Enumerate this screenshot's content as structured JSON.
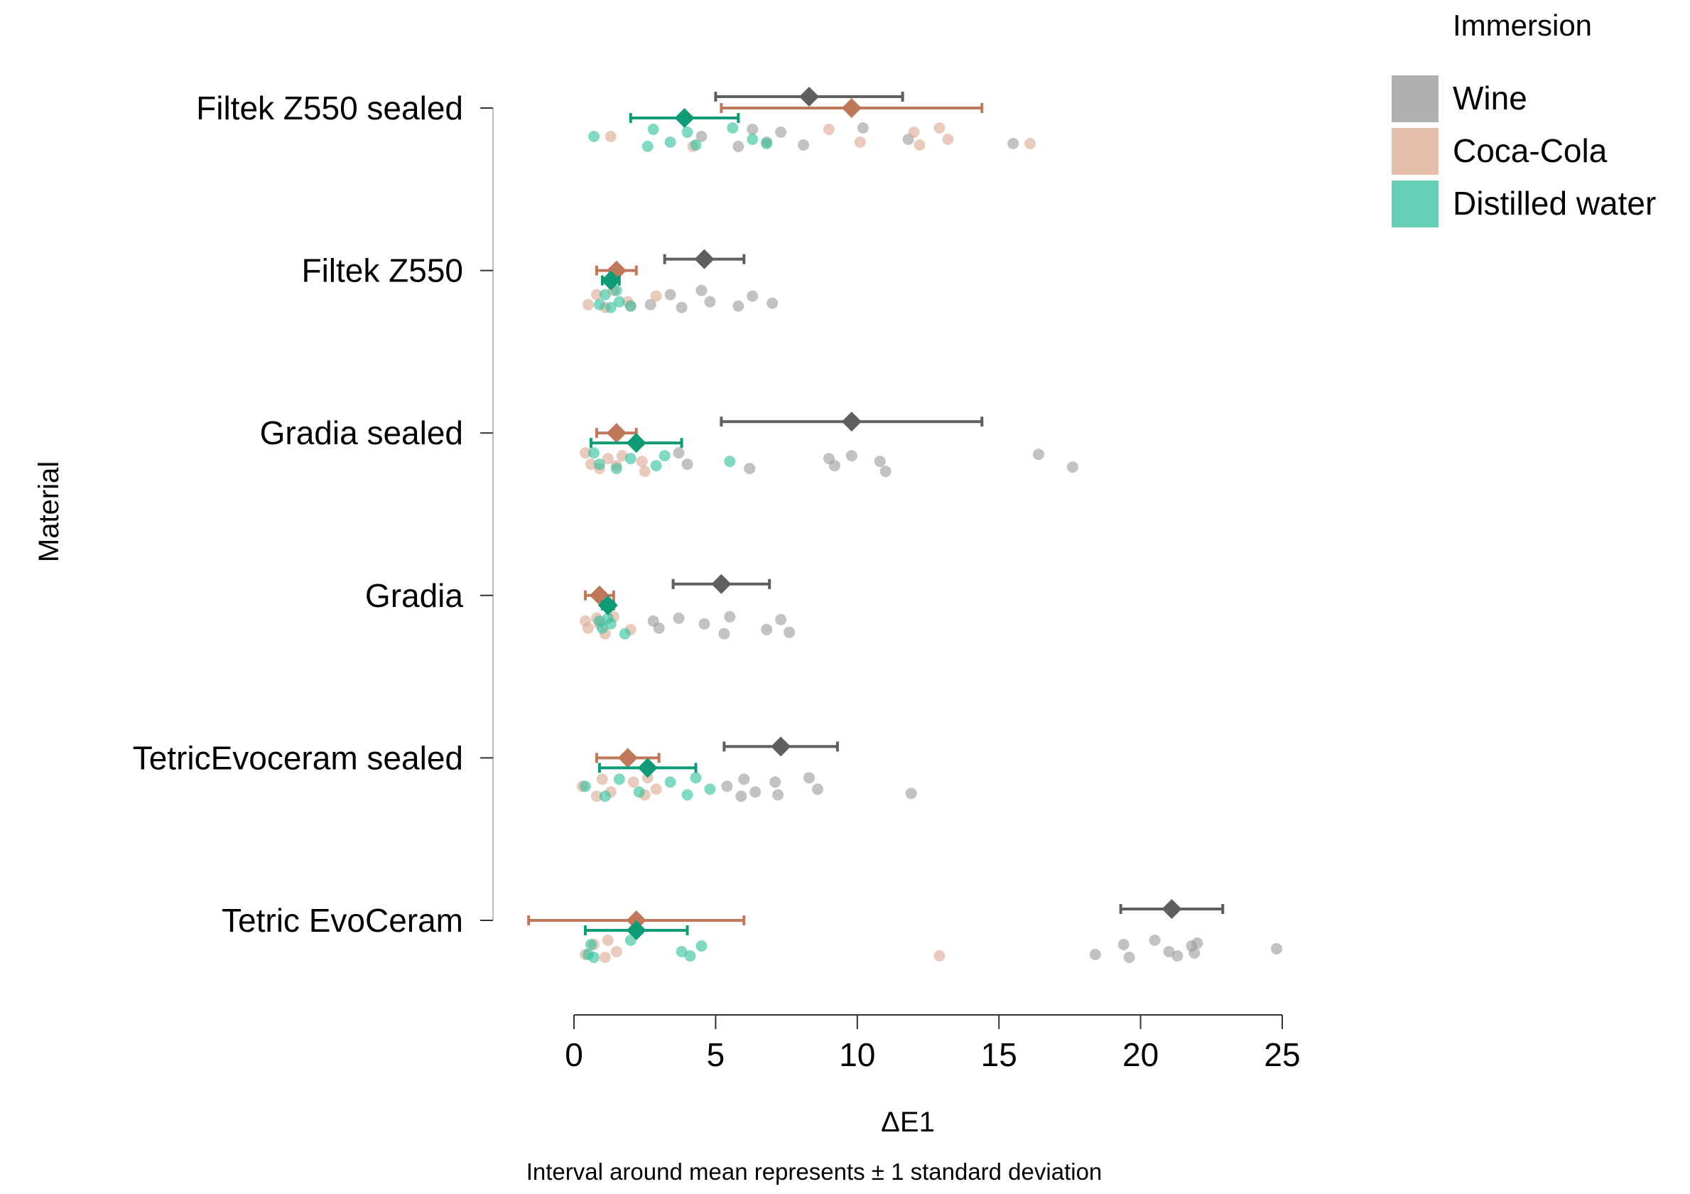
{
  "chart_data": {
    "type": "scatter",
    "xlabel": "ΔE1",
    "ylabel": "Material",
    "caption": "Interval around  mean represents  ± 1 standard  deviation",
    "xlim": [
      0,
      25
    ],
    "xticks": [
      0,
      5,
      10,
      15,
      20,
      25
    ],
    "categories": [
      "Filtek Z550 sealed",
      "Filtek Z550",
      "Gradia sealed",
      "Gradia",
      "TetricEvoceram sealed",
      "Tetric EvoCeram"
    ],
    "legend": {
      "title": "Immersion",
      "position": "top-right",
      "entries": [
        "Wine",
        "Coca-Cola",
        "Distilled water"
      ]
    },
    "colors": {
      "Wine": {
        "point": "#9a9a9a",
        "mean": "#5f5f5f",
        "swatch": "#b0b0b0"
      },
      "Coca-Cola": {
        "point": "#dba891",
        "mean": "#c0785a",
        "swatch": "#e3bcaa"
      },
      "Distilled water": {
        "point": "#2fbf9b",
        "mean": "#0f9a78",
        "swatch": "#64cfb6"
      }
    },
    "series": [
      {
        "name": "Wine",
        "mean": [
          8.3,
          4.6,
          9.8,
          5.2,
          7.3,
          21.1
        ],
        "sd": [
          3.3,
          1.4,
          4.6,
          1.7,
          2.0,
          1.8
        ],
        "points": [
          [
            4.5,
            5.8,
            6.3,
            6.8,
            7.3,
            8.1,
            10.2,
            11.8,
            15.5
          ],
          [
            2.7,
            3.4,
            3.8,
            4.5,
            4.8,
            5.8,
            6.3,
            7.0
          ],
          [
            3.7,
            4.0,
            6.2,
            9.0,
            9.2,
            9.8,
            10.8,
            11.0,
            16.4,
            17.6
          ],
          [
            2.8,
            3.0,
            3.7,
            4.6,
            5.3,
            5.5,
            6.8,
            7.3,
            7.6
          ],
          [
            5.4,
            5.9,
            6.0,
            6.4,
            7.1,
            7.2,
            8.3,
            8.6,
            11.9
          ],
          [
            18.4,
            19.4,
            19.6,
            20.5,
            21.0,
            21.3,
            21.8,
            21.9,
            22.0,
            24.8
          ]
        ]
      },
      {
        "name": "Coca-Cola",
        "mean": [
          9.8,
          1.5,
          1.5,
          0.9,
          1.9,
          2.2
        ],
        "sd": [
          4.6,
          0.7,
          0.7,
          0.5,
          1.1,
          3.8
        ],
        "points": [
          [
            1.3,
            4.2,
            9.0,
            10.1,
            12.0,
            12.2,
            12.9,
            13.2,
            16.1
          ],
          [
            0.5,
            0.8,
            1.1,
            1.4,
            1.9,
            2.0,
            2.9
          ],
          [
            0.4,
            0.6,
            0.9,
            1.2,
            1.5,
            1.7,
            2.4,
            2.5
          ],
          [
            0.4,
            0.5,
            0.8,
            0.9,
            1.1,
            1.4,
            2.0
          ],
          [
            0.3,
            0.8,
            1.0,
            1.3,
            2.1,
            2.5,
            2.6,
            2.9
          ],
          [
            0.4,
            0.7,
            1.1,
            1.2,
            1.5,
            12.9
          ]
        ]
      },
      {
        "name": "Distilled water",
        "mean": [
          3.9,
          1.3,
          2.2,
          1.2,
          2.6,
          2.2
        ],
        "sd": [
          1.9,
          0.3,
          1.6,
          0.2,
          1.7,
          1.8
        ],
        "points": [
          [
            0.7,
            2.6,
            2.8,
            3.4,
            4.0,
            4.3,
            5.6,
            6.3,
            6.8
          ],
          [
            0.9,
            1.1,
            1.3,
            1.5,
            1.6,
            2.0
          ],
          [
            0.7,
            0.9,
            1.5,
            2.0,
            2.9,
            3.2,
            5.5
          ],
          [
            0.9,
            1.0,
            1.2,
            1.3,
            1.8
          ],
          [
            0.4,
            1.1,
            1.6,
            2.3,
            3.4,
            4.0,
            4.3,
            4.8
          ],
          [
            0.5,
            0.6,
            0.7,
            2.0,
            3.8,
            4.1,
            4.5
          ]
        ]
      }
    ]
  }
}
